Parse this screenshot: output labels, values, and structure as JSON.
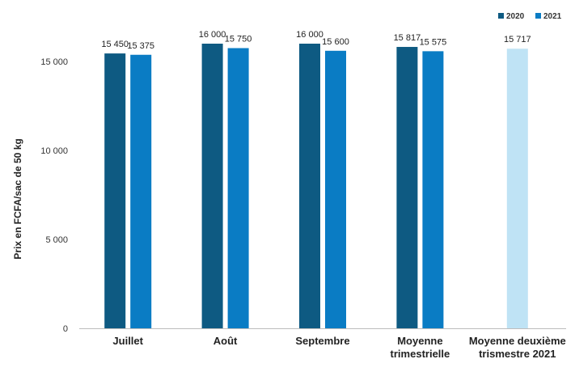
{
  "chart_data": {
    "type": "bar",
    "title": "",
    "xlabel": "",
    "ylabel": "Prix en FCFA/sac de 50 kg",
    "ylim": [
      0,
      17000
    ],
    "yticks": [
      0,
      5000,
      10000,
      15000
    ],
    "ytick_labels": [
      "0",
      "5 000",
      "10 000",
      "15 000"
    ],
    "grid": false,
    "legend_position": "top-right",
    "categories": [
      [
        "Juillet"
      ],
      [
        "Août"
      ],
      [
        "Septembre"
      ],
      [
        "Moyenne",
        "trimestrielle"
      ],
      [
        "Moyenne deuxième",
        "trismestre 2021"
      ]
    ],
    "series": [
      {
        "name": "2020",
        "color": "#0e5a82",
        "values": [
          15450,
          16000,
          16000,
          15817,
          null
        ],
        "labels": [
          "15 450",
          "16 000",
          "16 000",
          "15 817",
          null
        ]
      },
      {
        "name": "2021",
        "color": "#0a7cc4",
        "values": [
          15375,
          15750,
          15600,
          15575,
          null
        ],
        "labels": [
          "15 375",
          "15 750",
          "15 600",
          "15 575",
          null
        ]
      },
      {
        "name": "",
        "color": "#bfe3f5",
        "values": [
          null,
          null,
          null,
          null,
          15717
        ],
        "labels": [
          null,
          null,
          null,
          null,
          "15 717"
        ]
      }
    ]
  }
}
